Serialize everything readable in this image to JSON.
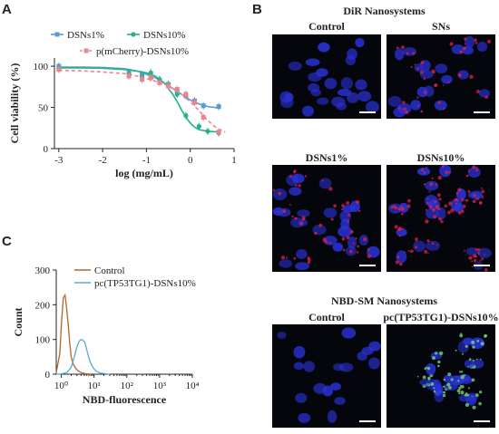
{
  "panels": {
    "a": "A",
    "b": "B",
    "c": "C"
  },
  "chart_data": [
    {
      "type": "scatter",
      "panel": "A",
      "xlabel": "log (mg/mL)",
      "ylabel": "Cell viability (%)",
      "xlim": [
        -3.1,
        1.0
      ],
      "ylim": [
        0,
        110
      ],
      "xticks": [
        "-3",
        "-2",
        "-1",
        "0",
        "1"
      ],
      "yticks": [
        "0",
        "50",
        "100"
      ],
      "legend_placement": "top",
      "series": [
        {
          "name": "DSNs1%",
          "color": "#5b9bd5",
          "marker": "square",
          "x": [
            -3,
            -1.4,
            -1.1,
            -0.9,
            -0.7,
            -0.5,
            -0.3,
            -0.1,
            0.1,
            0.3,
            0.65
          ],
          "y": [
            100,
            92,
            90,
            86,
            82,
            78,
            70,
            64,
            58,
            52,
            51
          ],
          "fit_x": [
            -3.0,
            -2.5,
            -2.0,
            -1.5,
            -1.2,
            -1.0,
            -0.8,
            -0.6,
            -0.4,
            -0.2,
            0.0,
            0.2,
            0.4,
            0.7
          ],
          "fit_y": [
            99,
            99,
            98.5,
            97,
            94,
            90,
            86,
            80,
            73,
            66,
            59,
            54,
            51,
            49
          ]
        },
        {
          "name": "DSNs10%",
          "color": "#27b08a",
          "marker": "circle",
          "x": [
            -3,
            -1.4,
            -1.1,
            -0.9,
            -0.7,
            -0.5,
            -0.3,
            -0.1,
            0.2,
            0.4,
            0.65
          ],
          "y": [
            97,
            90,
            87,
            92,
            84,
            78,
            66,
            40,
            27,
            21,
            19
          ],
          "fit_x": [
            -3.0,
            -2.5,
            -2.0,
            -1.5,
            -1.2,
            -1.0,
            -0.8,
            -0.6,
            -0.4,
            -0.3,
            -0.2,
            -0.1,
            0.0,
            0.1,
            0.2,
            0.4,
            0.7
          ],
          "fit_y": [
            98,
            98,
            97.5,
            96,
            94,
            92,
            88,
            80,
            66,
            57,
            47,
            38,
            31,
            26,
            23,
            21,
            20
          ]
        },
        {
          "name": "p(mCherry)-DSNs10%",
          "color": "#e8868f",
          "marker": "square",
          "dashed": true,
          "x": [
            -3,
            -1.4,
            -1.1,
            -0.9,
            -0.7,
            -0.5,
            -0.3,
            -0.1,
            0.1,
            0.3,
            0.65
          ],
          "y": [
            96,
            88,
            84,
            86,
            80,
            76,
            72,
            66,
            56,
            38,
            20
          ],
          "fit_x": [
            -3.0,
            -2.5,
            -2.0,
            -1.5,
            -1.2,
            -1.0,
            -0.8,
            -0.6,
            -0.4,
            -0.2,
            0.0,
            0.2,
            0.4,
            0.6,
            0.8
          ],
          "fit_y": [
            95,
            94.5,
            93,
            91,
            88,
            85,
            82,
            78,
            73,
            66,
            57,
            46,
            34,
            25,
            20
          ]
        }
      ]
    },
    {
      "type": "area",
      "panel": "C",
      "xlabel": "NBD-fluorescence",
      "ylabel": "Count",
      "xscale": "log",
      "xlim": [
        0.7,
        10000
      ],
      "ylim": [
        0,
        300
      ],
      "xticks": [
        "10⁰",
        "10¹",
        "10²",
        "10³",
        "10⁴"
      ],
      "yticks": [
        "0",
        "100",
        "200",
        "300"
      ],
      "legend_placement": "top-right",
      "series": [
        {
          "name": "Control",
          "color": "#b5652e",
          "x": [
            0.7,
            0.9,
            1.0,
            1.15,
            1.3,
            1.45,
            1.6,
            1.8,
            2.0,
            2.3,
            2.7,
            3.2,
            4.0,
            5.0,
            6.5,
            8.0
          ],
          "y": [
            5,
            60,
            140,
            220,
            228,
            190,
            150,
            90,
            50,
            30,
            18,
            10,
            5,
            2,
            1,
            0
          ]
        },
        {
          "name": "pc(TP53TG1)-DSNs10%",
          "color": "#5aaad8",
          "x": [
            0.7,
            1.0,
            1.5,
            2.0,
            2.5,
            3.0,
            3.5,
            4.0,
            4.5,
            5.2,
            6.0,
            7.0,
            8.5,
            10.0,
            12.0,
            15.0,
            20.0,
            30.0
          ],
          "y": [
            0,
            1,
            5,
            20,
            50,
            80,
            95,
            100,
            98,
            92,
            70,
            45,
            25,
            15,
            8,
            4,
            2,
            0
          ]
        }
      ]
    }
  ],
  "dir_section": {
    "title": "DiR Nanosystems",
    "images": [
      {
        "label": "Control"
      },
      {
        "label": "SNs"
      },
      {
        "label": "DSNs1%"
      },
      {
        "label": "DSNs10%"
      }
    ]
  },
  "nbd_section": {
    "title": "NBD-SM Nanosystems",
    "images": [
      {
        "label": "Control"
      },
      {
        "label": "pc(TP53TG1)-DSNs10%"
      }
    ]
  }
}
